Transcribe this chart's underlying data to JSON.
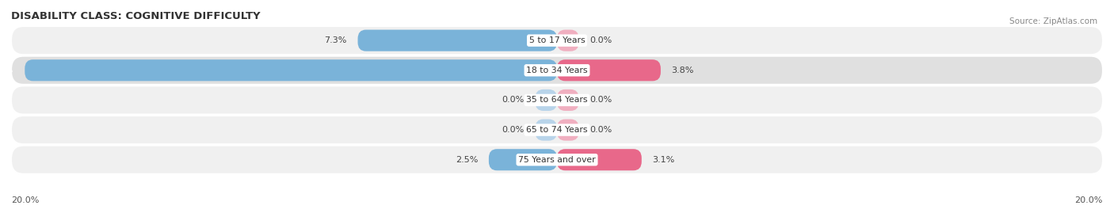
{
  "title": "DISABILITY CLASS: COGNITIVE DIFFICULTY",
  "source": "Source: ZipAtlas.com",
  "categories": [
    "5 to 17 Years",
    "18 to 34 Years",
    "35 to 64 Years",
    "65 to 74 Years",
    "75 Years and over"
  ],
  "male_values": [
    7.3,
    19.5,
    0.0,
    0.0,
    2.5
  ],
  "female_values": [
    0.0,
    3.8,
    0.0,
    0.0,
    3.1
  ],
  "male_color": "#7ab3d9",
  "female_color": "#e8688a",
  "male_color_light": "#b8d4ea",
  "female_color_light": "#f0afc0",
  "row_colors": [
    "#f0f0f0",
    "#e6e6e6",
    "#f0f0f0",
    "#f0f0f0",
    "#f0f0f0"
  ],
  "max_val": 20.0,
  "axis_label_left": "20.0%",
  "axis_label_right": "20.0%"
}
